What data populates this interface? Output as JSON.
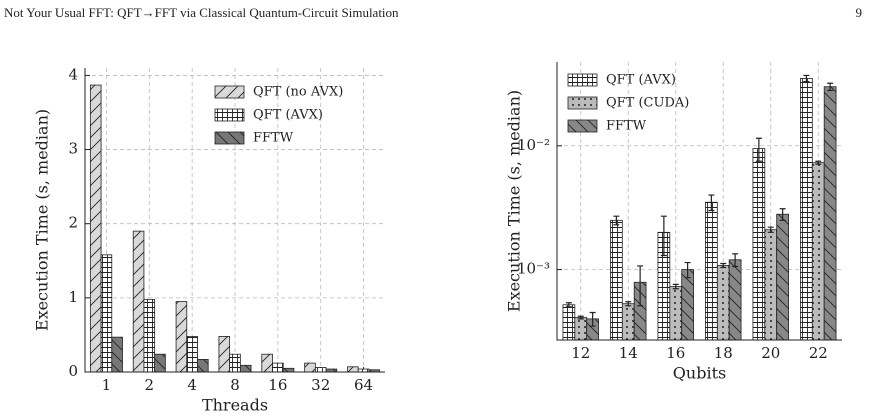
{
  "header": {
    "title": "Not Your Usual FFT: QFT→FFT via Classical Quantum-Circuit Simulation",
    "page": "9"
  },
  "chart_data": [
    {
      "type": "bar",
      "xlabel": "Threads",
      "ylabel": "Execution Time (s, median)",
      "categories": [
        "1",
        "2",
        "4",
        "8",
        "16",
        "32",
        "64"
      ],
      "series": [
        {
          "name": "QFT (no AVX)",
          "color": "#d9d9d9",
          "hatch": "/",
          "values": [
            3.87,
            1.9,
            0.95,
            0.48,
            0.24,
            0.12,
            0.07
          ]
        },
        {
          "name": "QFT (AVX)",
          "color": "#ffffff",
          "hatch": "+",
          "values": [
            1.58,
            0.98,
            0.48,
            0.24,
            0.12,
            0.06,
            0.04
          ]
        },
        {
          "name": "FFTW",
          "color": "#777777",
          "hatch": "\\",
          "values": [
            0.47,
            0.24,
            0.17,
            0.09,
            0.05,
            0.04,
            0.03
          ]
        }
      ],
      "ylim": [
        0,
        4.1
      ],
      "yticks": [
        0,
        1,
        2,
        3,
        4
      ],
      "grid": true,
      "legend": "upper right"
    },
    {
      "type": "bar",
      "xlabel": "Qubits",
      "ylabel": "Execution Time (s, median)",
      "log_y": true,
      "categories": [
        "12",
        "14",
        "16",
        "18",
        "20",
        "22"
      ],
      "series": [
        {
          "name": "QFT (AVX)",
          "color": "#ffffff",
          "hatch": "+",
          "values": [
            0.00052,
            0.0025,
            0.002,
            0.0035,
            0.0095,
            0.035
          ],
          "errors": [
            2e-05,
            0.0002,
            0.0007,
            0.0005,
            0.002,
            0.002
          ]
        },
        {
          "name": "QFT (CUDA)",
          "color": "#bbbbbb",
          "hatch": ".",
          "values": [
            0.00041,
            0.00053,
            0.00073,
            0.00108,
            0.0021,
            0.0073
          ],
          "errors": [
            1e-05,
            2e-05,
            3e-05,
            4e-05,
            0.0001,
            0.0002
          ]
        },
        {
          "name": "FFTW",
          "color": "#888888",
          "hatch": "\\",
          "values": [
            0.0004,
            0.00079,
            0.001,
            0.0012,
            0.0028,
            0.03
          ],
          "errors": [
            5e-05,
            0.00028,
            0.00014,
            0.00014,
            0.0003,
            0.002
          ]
        }
      ],
      "ylim": [
        0.00027,
        0.0475
      ],
      "yticks": [
        {
          "value": 0.001,
          "label": "10⁻³"
        },
        {
          "value": 0.01,
          "label": "10⁻²"
        }
      ],
      "grid": true,
      "legend": "upper left"
    }
  ]
}
